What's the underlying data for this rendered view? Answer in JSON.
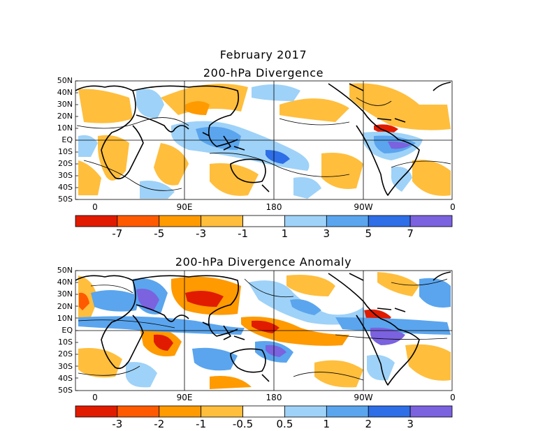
{
  "title_main": "February 2017",
  "panel1": {
    "title": "200-hPa Divergence",
    "lat_labels": [
      "50N",
      "40N",
      "30N",
      "20N",
      "10N",
      "EQ",
      "10S",
      "20S",
      "30S",
      "40S",
      "50S"
    ],
    "lon_labels": [
      "0",
      "90E",
      "180",
      "90W",
      "0"
    ],
    "colorbar": {
      "labels": [
        "-7",
        "-5",
        "-3",
        "-1",
        "1",
        "3",
        "5",
        "7"
      ],
      "colors": [
        "#e01b00",
        "#ff5a00",
        "#ff9a00",
        "#ffbe3c",
        "#ffffff",
        "#9ed2f8",
        "#5aa5ee",
        "#2e6ee6",
        "#7b62de"
      ]
    }
  },
  "panel2": {
    "title": "200-hPa Divergence Anomaly",
    "lat_labels": [
      "50N",
      "40N",
      "30N",
      "20N",
      "10N",
      "EQ",
      "10S",
      "20S",
      "30S",
      "40S",
      "50S"
    ],
    "lon_labels": [
      "0",
      "90E",
      "180",
      "90W",
      "0"
    ],
    "colorbar": {
      "labels": [
        "-3",
        "-2",
        "-1",
        "-0.5",
        "0.5",
        "1",
        "2",
        "3"
      ],
      "colors": [
        "#e01b00",
        "#ff5a00",
        "#ff9a00",
        "#ffbe3c",
        "#ffffff",
        "#9ed2f8",
        "#5aa5ee",
        "#2e6ee6",
        "#7b62de"
      ]
    }
  }
}
